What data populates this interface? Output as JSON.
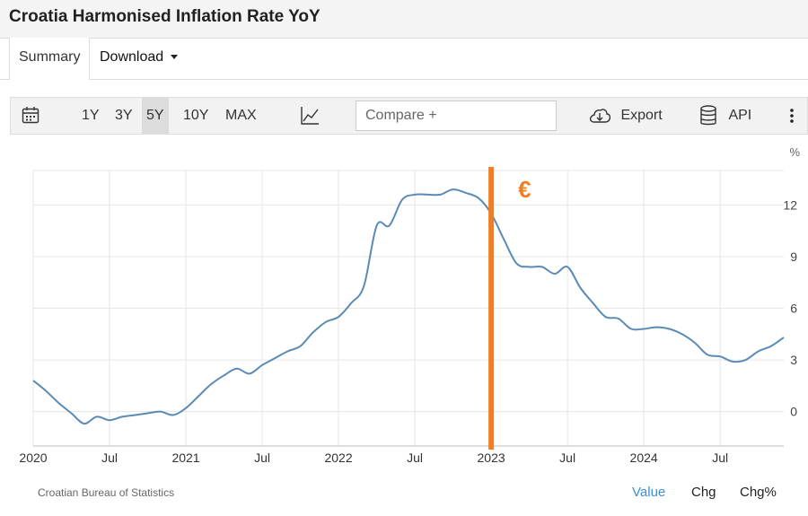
{
  "header": {
    "title": "Croatia Harmonised Inflation Rate YoY"
  },
  "tabs": [
    {
      "label": "Summary"
    },
    {
      "label": "Download"
    }
  ],
  "toolbar": {
    "ranges": [
      "1Y",
      "3Y",
      "5Y",
      "10Y",
      "MAX"
    ],
    "selected_range": "5Y",
    "compare_placeholder": "Compare +",
    "export_label": "Export",
    "api_label": "API"
  },
  "chart_data": {
    "type": "line",
    "title": "",
    "unit_label": "%",
    "x_tick_labels": [
      "2020",
      "Jul",
      "2021",
      "Jul",
      "2022",
      "Jul",
      "2023",
      "Jul",
      "2024",
      "Jul"
    ],
    "y_ticks": [
      0,
      3,
      6,
      9,
      12
    ],
    "ylim": [
      -2,
      14
    ],
    "grid": true,
    "annotation": {
      "text": "€",
      "at": "2023-01",
      "color": "#f07f22"
    },
    "series": [
      {
        "color": "#5b8bb5",
        "x": [
          "2020-01",
          "2020-02",
          "2020-03",
          "2020-04",
          "2020-05",
          "2020-06",
          "2020-07",
          "2020-08",
          "2020-09",
          "2020-10",
          "2020-11",
          "2020-12",
          "2021-01",
          "2021-02",
          "2021-03",
          "2021-04",
          "2021-05",
          "2021-06",
          "2021-07",
          "2021-08",
          "2021-09",
          "2021-10",
          "2021-11",
          "2021-12",
          "2022-01",
          "2022-02",
          "2022-03",
          "2022-04",
          "2022-05",
          "2022-06",
          "2022-07",
          "2022-08",
          "2022-09",
          "2022-10",
          "2022-11",
          "2022-12",
          "2023-01",
          "2023-02",
          "2023-03",
          "2023-04",
          "2023-05",
          "2023-06",
          "2023-07",
          "2023-08",
          "2023-09",
          "2023-10",
          "2023-11",
          "2023-12",
          "2024-01",
          "2024-02",
          "2024-03",
          "2024-04",
          "2024-05",
          "2024-06",
          "2024-07",
          "2024-08",
          "2024-09",
          "2024-10",
          "2024-11",
          "2024-12"
        ],
        "values": [
          1.8,
          1.2,
          0.5,
          -0.1,
          -0.7,
          -0.3,
          -0.5,
          -0.3,
          -0.2,
          -0.1,
          0.0,
          -0.2,
          0.2,
          0.9,
          1.6,
          2.1,
          2.5,
          2.2,
          2.7,
          3.1,
          3.5,
          3.8,
          4.6,
          5.2,
          5.5,
          6.3,
          7.3,
          10.8,
          10.8,
          12.3,
          12.6,
          12.6,
          12.6,
          12.9,
          12.7,
          12.4,
          11.5,
          10.0,
          8.6,
          8.4,
          8.4,
          8.0,
          8.4,
          7.2,
          6.3,
          5.5,
          5.4,
          4.8,
          4.8,
          4.9,
          4.8,
          4.5,
          4.0,
          3.3,
          3.2,
          2.9,
          3.0,
          3.5,
          3.8,
          4.3
        ]
      }
    ]
  },
  "footer": {
    "source": "Croatian Bureau of Statistics",
    "tabs": [
      "Value",
      "Chg",
      "Chg%"
    ]
  }
}
